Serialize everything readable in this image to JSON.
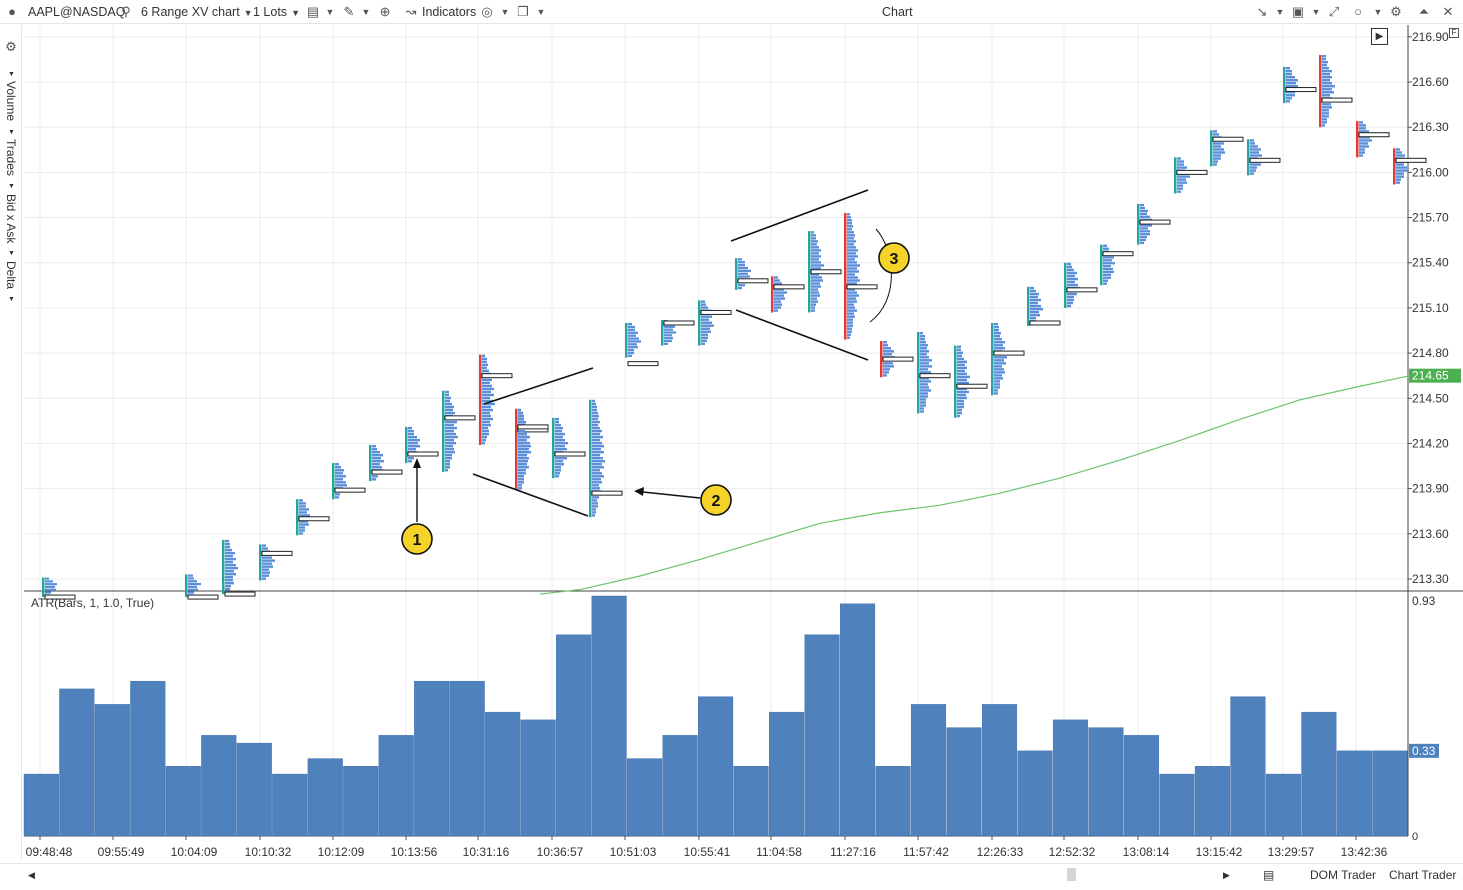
{
  "toolbar": {
    "symbol": "AAPL@NASDAQ",
    "chart_type": "6 Range XV chart",
    "lots": "1 Lots",
    "indicators": "Indicators",
    "window_title": "Chart"
  },
  "sidebar": {
    "items": [
      "Volume",
      "Trades",
      "Bid x Ask",
      "Delta"
    ]
  },
  "price_axis": {
    "ticks": [
      "216.90",
      "216.60",
      "216.30",
      "216.00",
      "215.70",
      "215.40",
      "215.10",
      "214.80",
      "214.50",
      "214.20",
      "213.90",
      "213.60",
      "213.30"
    ],
    "current_price": "214.65",
    "current_price_color": "#4caf50"
  },
  "atr_panel": {
    "label": "ATR(Bars, 1, 1.0, True)",
    "axis_top": "0.93",
    "axis_bottom": "0",
    "current_value": "0.33",
    "bar_color": "#4f81bd"
  },
  "time_axis": {
    "labels": [
      "09:48:48",
      "09:55:49",
      "10:04:09",
      "10:10:32",
      "10:12:09",
      "10:13:56",
      "10:31:16",
      "10:36:57",
      "10:51:03",
      "10:55:41",
      "11:04:58",
      "11:27:16",
      "11:57:42",
      "12:26:33",
      "12:52:32",
      "13:08:14",
      "13:15:42",
      "13:29:57",
      "13:42:36"
    ]
  },
  "annotations": [
    "1",
    "2",
    "3"
  ],
  "bottom_bar": {
    "dom_trader": "DOM Trader",
    "chart_trader": "Chart Trader"
  },
  "colors": {
    "up": "#26a69a",
    "down": "#e53935",
    "profile": "#5b8fd9",
    "ma": "#6cc46c",
    "marker": "#f5d328"
  },
  "chart_data": [
    {
      "type": "bar",
      "title": "",
      "ylabel": "",
      "xlabel": "",
      "ylim": [
        213.2,
        216.95
      ],
      "categories": [
        "09:48:48",
        "09:55:49",
        "10:04:09",
        "10:10:32",
        "10:12:09",
        "10:13:56",
        "10:31:16",
        "10:36:57",
        "10:51:03",
        "10:55:41",
        "11:04:58",
        "11:27:16",
        "11:57:42",
        "12:26:33",
        "12:52:32",
        "13:08:14",
        "13:15:42",
        "13:29:57",
        "13:42:36"
      ],
      "candles": [
        {
          "lo": 213.18,
          "hi": 213.31,
          "poc": 213.18,
          "dir": "up"
        },
        {
          "lo": 213.18,
          "hi": 213.33,
          "poc": 213.18,
          "dir": "up"
        },
        {
          "lo": 213.2,
          "hi": 213.56,
          "poc": 213.2,
          "dir": "up"
        },
        {
          "lo": 213.29,
          "hi": 213.53,
          "poc": 213.47,
          "dir": "up"
        },
        {
          "lo": 213.59,
          "hi": 213.83,
          "poc": 213.7,
          "dir": "up"
        },
        {
          "lo": 213.83,
          "hi": 214.07,
          "poc": 213.89,
          "dir": "up"
        },
        {
          "lo": 213.95,
          "hi": 214.19,
          "poc": 214.01,
          "dir": "up"
        },
        {
          "lo": 214.07,
          "hi": 214.31,
          "poc": 214.13,
          "dir": "up"
        },
        {
          "lo": 214.01,
          "hi": 214.55,
          "poc": 214.37,
          "dir": "up"
        },
        {
          "lo": 214.19,
          "hi": 214.79,
          "poc": 214.65,
          "dir": "down"
        },
        {
          "lo": 213.97,
          "hi": 214.43,
          "poc": 214.29,
          "dir": "down"
        },
        {
          "lo": 213.97,
          "hi": 214.37,
          "poc": 214.13,
          "dir": "up"
        },
        {
          "lo": 213.89,
          "hi": 214.43,
          "poc": 214.31,
          "dir": "down"
        },
        {
          "lo": 213.71,
          "hi": 214.49,
          "poc": 213.87,
          "dir": "up"
        },
        {
          "lo": 214.77,
          "hi": 215.0,
          "poc": 214.73,
          "dir": "up"
        },
        {
          "lo": 214.85,
          "hi": 215.02,
          "poc": 215.0,
          "dir": "up"
        },
        {
          "lo": 214.85,
          "hi": 215.15,
          "poc": 215.07,
          "dir": "up"
        },
        {
          "lo": 215.22,
          "hi": 215.43,
          "poc": 215.28,
          "dir": "up"
        },
        {
          "lo": 215.07,
          "hi": 215.31,
          "poc": 215.24,
          "dir": "down"
        },
        {
          "lo": 215.07,
          "hi": 215.61,
          "poc": 215.34,
          "dir": "up"
        },
        {
          "lo": 214.89,
          "hi": 215.73,
          "poc": 215.24,
          "dir": "down"
        },
        {
          "lo": 214.64,
          "hi": 214.88,
          "poc": 214.76,
          "dir": "down"
        },
        {
          "lo": 214.4,
          "hi": 214.94,
          "poc": 214.65,
          "dir": "up"
        },
        {
          "lo": 214.37,
          "hi": 214.85,
          "poc": 214.58,
          "dir": "up"
        },
        {
          "lo": 214.52,
          "hi": 215.0,
          "poc": 214.8,
          "dir": "up"
        },
        {
          "lo": 214.98,
          "hi": 215.24,
          "poc": 215.0,
          "dir": "up"
        },
        {
          "lo": 215.1,
          "hi": 215.4,
          "poc": 215.22,
          "dir": "up"
        },
        {
          "lo": 215.25,
          "hi": 215.52,
          "poc": 215.46,
          "dir": "up"
        },
        {
          "lo": 215.52,
          "hi": 215.79,
          "poc": 215.67,
          "dir": "up"
        },
        {
          "lo": 215.86,
          "hi": 216.1,
          "poc": 216.0,
          "dir": "up"
        },
        {
          "lo": 216.04,
          "hi": 216.28,
          "poc": 216.22,
          "dir": "up"
        },
        {
          "lo": 215.98,
          "hi": 216.22,
          "poc": 216.08,
          "dir": "up"
        },
        {
          "lo": 216.46,
          "hi": 216.7,
          "poc": 216.55,
          "dir": "up"
        },
        {
          "lo": 216.3,
          "hi": 216.78,
          "poc": 216.48,
          "dir": "down"
        },
        {
          "lo": 216.1,
          "hi": 216.34,
          "poc": 216.25,
          "dir": "down"
        },
        {
          "lo": 215.92,
          "hi": 216.16,
          "poc": 216.08,
          "dir": "down"
        }
      ],
      "ma_line": [
        {
          "x": 540,
          "y": 213.2
        },
        {
          "x": 580,
          "y": 213.23
        },
        {
          "x": 640,
          "y": 213.32
        },
        {
          "x": 700,
          "y": 213.43
        },
        {
          "x": 760,
          "y": 213.55
        },
        {
          "x": 820,
          "y": 213.67
        },
        {
          "x": 880,
          "y": 213.74
        },
        {
          "x": 940,
          "y": 213.79
        },
        {
          "x": 1000,
          "y": 213.87
        },
        {
          "x": 1060,
          "y": 213.97
        },
        {
          "x": 1120,
          "y": 214.09
        },
        {
          "x": 1180,
          "y": 214.22
        },
        {
          "x": 1240,
          "y": 214.36
        },
        {
          "x": 1300,
          "y": 214.49
        },
        {
          "x": 1360,
          "y": 214.58
        },
        {
          "x": 1410,
          "y": 214.65
        }
      ]
    },
    {
      "type": "bar",
      "title": "ATR(Bars, 1, 1.0, True)",
      "ylim": [
        0,
        0.93
      ],
      "values": [
        0.24,
        0.57,
        0.51,
        0.6,
        0.27,
        0.39,
        0.36,
        0.24,
        0.3,
        0.27,
        0.39,
        0.6,
        0.6,
        0.48,
        0.45,
        0.78,
        0.93,
        0.3,
        0.39,
        0.54,
        0.27,
        0.48,
        0.78,
        0.9,
        0.27,
        0.51,
        0.42,
        0.51,
        0.33,
        0.45,
        0.42,
        0.39,
        0.24,
        0.27,
        0.54,
        0.24,
        0.48,
        0.33,
        0.33
      ]
    }
  ]
}
